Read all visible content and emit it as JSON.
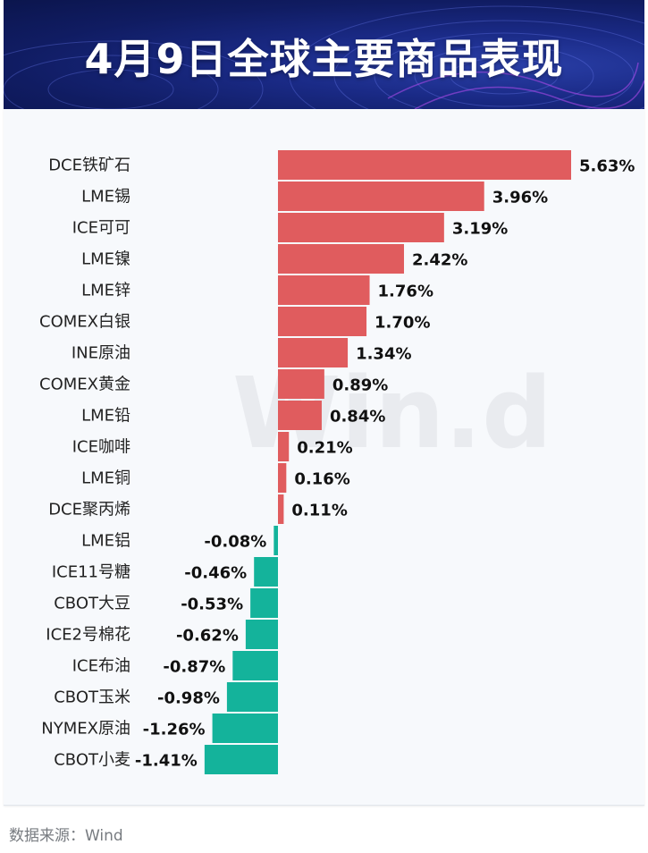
{
  "header": {
    "title": "4月9日全球主要商品表现"
  },
  "watermark": "Win.d",
  "source": "数据来源：Wind",
  "colors": {
    "positive": "#e05c5e",
    "negative": "#14b39b",
    "header_bg": "#13206b"
  },
  "chart_data": {
    "type": "bar",
    "orientation": "horizontal",
    "title": "4月9日全球主要商品表现",
    "unit": "%",
    "categories": [
      "DCE铁矿石",
      "LME锡",
      "ICE可可",
      "LME镍",
      "LME锌",
      "COMEX白银",
      "INE原油",
      "COMEX黄金",
      "LME铅",
      "ICE咖啡",
      "LME铜",
      "DCE聚丙烯",
      "LME铝",
      "ICE11号糖",
      "CBOT大豆",
      "ICE2号棉花",
      "ICE布油",
      "CBOT玉米",
      "NYMEX原油",
      "CBOT小麦"
    ],
    "values": [
      5.63,
      3.96,
      3.19,
      2.42,
      1.76,
      1.7,
      1.34,
      0.89,
      0.84,
      0.21,
      0.16,
      0.11,
      -0.08,
      -0.46,
      -0.53,
      -0.62,
      -0.87,
      -0.98,
      -1.26,
      -1.41
    ],
    "value_labels": [
      "5.63%",
      "3.96%",
      "3.19%",
      "2.42%",
      "1.76%",
      "1.70%",
      "1.34%",
      "0.89%",
      "0.84%",
      "0.21%",
      "0.16%",
      "0.11%",
      "-0.08%",
      "-0.46%",
      "-0.53%",
      "-0.62%",
      "-0.87%",
      "-0.98%",
      "-1.26%",
      "-1.41%"
    ],
    "grid": false,
    "legend": "none"
  }
}
